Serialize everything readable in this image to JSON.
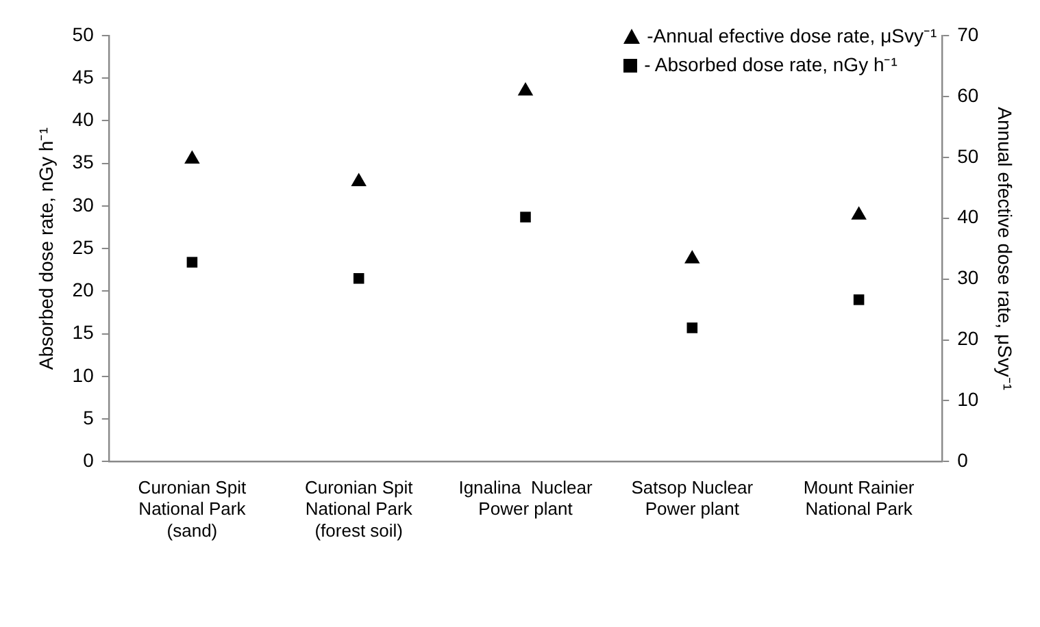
{
  "chart_data": {
    "type": "scatter",
    "categories": [
      "Curonian Spit National Park (sand)",
      "Curonian Spit National Park (forest soil)",
      "Ignalina  Nuclear Power plant",
      "Satsop Nuclear Power plant",
      "Mount Rainier National Park"
    ],
    "series": [
      {
        "name": "-Annual efective dose rate, μSvy⁻¹",
        "color": "#000000",
        "marker": "triangle",
        "axis": "y2",
        "values": [
          49.7,
          46.0,
          60.9,
          33.3,
          40.5
        ]
      },
      {
        "name": "- Absorbed dose rate, nGy h⁻¹",
        "color": "#000000",
        "marker": "square",
        "values": [
          23.4,
          21.5,
          28.7,
          15.7,
          19.0
        ]
      }
    ],
    "ylabel": "Absorbed dose rate, nGy h⁻¹",
    "y2label": "Annual efective dose rate, μSvy⁻¹",
    "ylim": [
      0,
      50
    ],
    "yticks": [
      0,
      5,
      10,
      15,
      20,
      25,
      30,
      35,
      40,
      45,
      50
    ],
    "y2lim": [
      0,
      70
    ],
    "y2ticks": [
      0,
      10,
      20,
      30,
      40,
      50,
      60,
      70
    ],
    "grid": false,
    "legend": "top right"
  }
}
